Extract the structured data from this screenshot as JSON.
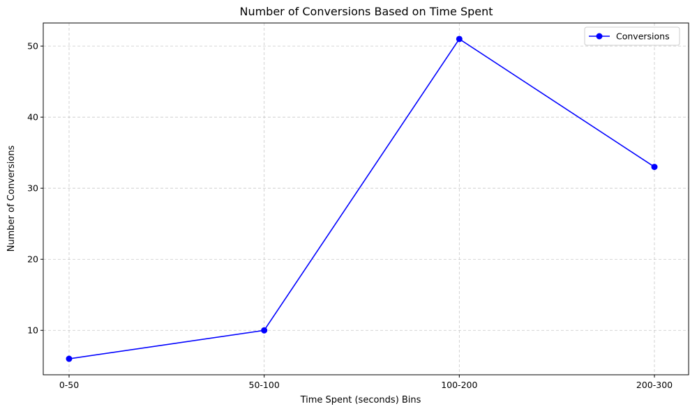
{
  "chart_data": {
    "type": "line",
    "title": "Number of Conversions Based on Time Spent",
    "xlabel": "Time Spent (seconds) Bins",
    "ylabel": "Number of Conversions",
    "categories": [
      "0-50",
      "50-100",
      "100-200",
      "200-300"
    ],
    "series": [
      {
        "name": "Conversions",
        "values": [
          6,
          10,
          51,
          33
        ],
        "color": "#0000ff",
        "marker": "circle"
      }
    ],
    "ylim": [
      3.75,
      53.25
    ],
    "yticks": [
      10,
      20,
      30,
      40,
      50
    ],
    "grid": true,
    "legend_position": "top-right"
  }
}
